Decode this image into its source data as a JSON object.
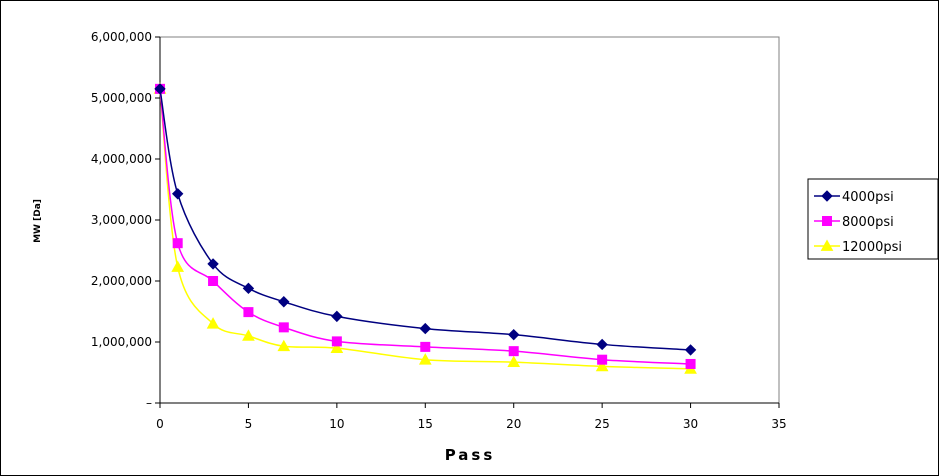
{
  "chart_data": {
    "type": "line",
    "xlabel": "Pass",
    "ylabel": "MW [Da]",
    "xlim": [
      0,
      35
    ],
    "ylim": [
      0,
      6000000
    ],
    "xticks": [
      "0",
      "5",
      "10",
      "15",
      "20",
      "25",
      "30",
      "35"
    ],
    "yticks": [
      "–",
      "1,000,000",
      "2,000,000",
      "3,000,000",
      "4,000,000",
      "5,000,000",
      "6,000,000"
    ],
    "x": [
      0,
      1,
      3,
      5,
      7,
      10,
      15,
      20,
      25,
      30
    ],
    "grid": false,
    "smooth": true,
    "legend": "right",
    "series": [
      {
        "name": "4000psi",
        "color": "#000080",
        "marker": "diamond",
        "values": [
          5150000,
          3430000,
          2280000,
          1880000,
          1660000,
          1420000,
          1220000,
          1120000,
          960000,
          870000
        ]
      },
      {
        "name": "8000psi",
        "color": "#FF00FF",
        "marker": "square",
        "values": [
          5150000,
          2620000,
          2000000,
          1490000,
          1240000,
          1010000,
          920000,
          850000,
          710000,
          640000
        ]
      },
      {
        "name": "12000psi",
        "color": "#FFFF00",
        "marker": "triangle",
        "values": [
          5150000,
          2230000,
          1300000,
          1100000,
          930000,
          900000,
          710000,
          670000,
          600000,
          560000
        ]
      }
    ]
  }
}
